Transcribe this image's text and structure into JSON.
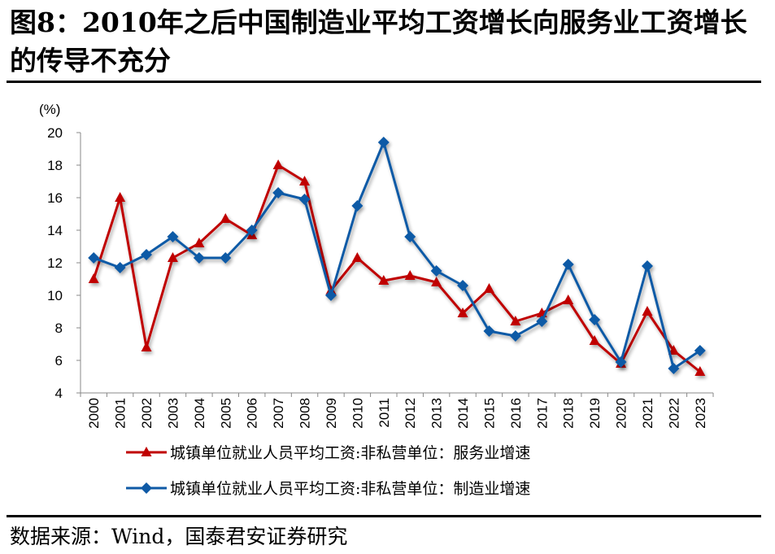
{
  "title": "图8：2010年之后中国制造业平均工资增长向服务业工资增长的传导不充分",
  "source": "数据来源：Wind，国泰君安证券研究",
  "chart_data": {
    "type": "line",
    "ylabel": "(%)",
    "ylim": [
      4,
      20
    ],
    "yticks": [
      4,
      6,
      8,
      10,
      12,
      14,
      16,
      18,
      20
    ],
    "grid": false,
    "legend": "bottom",
    "categories": [
      "2000",
      "2001",
      "2002",
      "2003",
      "2004",
      "2005",
      "2006",
      "2007",
      "2008",
      "2009",
      "2010",
      "2011",
      "2012",
      "2013",
      "2014",
      "2015",
      "2016",
      "2017",
      "2018",
      "2019",
      "2020",
      "2021",
      "2022",
      "2023"
    ],
    "series": [
      {
        "name": "城镇单位就业人员平均工资:非私营单位：服务业增速",
        "color": "#C00000",
        "marker": "triangle",
        "values": [
          11.0,
          16.0,
          6.8,
          12.3,
          13.2,
          14.7,
          13.7,
          18.0,
          17.0,
          10.3,
          12.3,
          10.9,
          11.2,
          10.8,
          8.9,
          10.4,
          8.4,
          8.9,
          9.7,
          7.2,
          5.8,
          9.0,
          6.6,
          5.3
        ]
      },
      {
        "name": "城镇单位就业人员平均工资:非私营单位：制造业增速",
        "color": "#0F5AA6",
        "marker": "diamond",
        "values": [
          12.3,
          11.7,
          12.5,
          13.6,
          12.3,
          12.3,
          14.0,
          16.3,
          15.9,
          10.0,
          15.5,
          19.4,
          13.6,
          11.5,
          10.6,
          7.8,
          7.5,
          8.4,
          11.9,
          8.5,
          5.9,
          11.8,
          5.5,
          6.6
        ]
      }
    ]
  }
}
